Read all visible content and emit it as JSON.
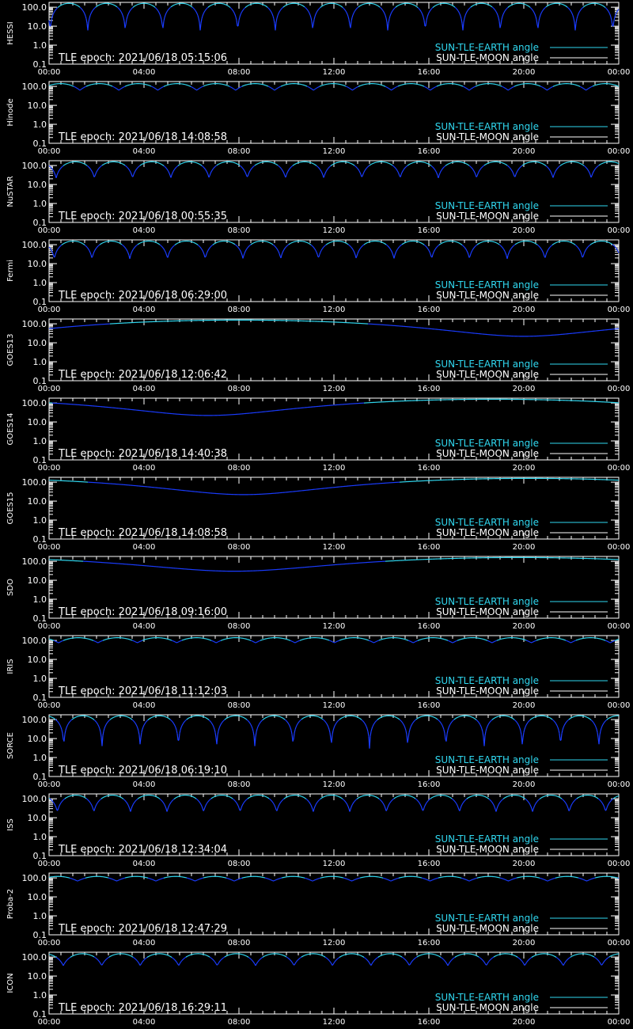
{
  "chart_data": {
    "type": "line",
    "x_tick_labels": [
      "00:00",
      "04:00",
      "08:00",
      "12:00",
      "16:00",
      "20:00",
      "00:00"
    ],
    "y_tick_labels": [
      "100.0",
      "10.0",
      "1.0",
      "0.1"
    ],
    "y_scale": "log",
    "ylim": [
      0.1,
      180
    ],
    "x_range_hours": [
      0,
      24
    ],
    "grid": false,
    "legend_placement": "bottom-right",
    "legend": [
      "SUN-TLE-EARTH angle",
      "SUN-TLE-MOON angle"
    ],
    "colors": {
      "background": "#000000",
      "axes": "#ffffff",
      "earth_visible": "#30d8f0",
      "earth_occulted": "#1a3cff",
      "moon": "#ffffff"
    },
    "panels": [
      {
        "satellite": "HESSI",
        "epoch_label": "TLE epoch: 2021/06/18 05:15:06",
        "profile": "leo",
        "period_hours": 1.58,
        "phase_hours": 0.05,
        "min_angle": 5,
        "max_angle": 160
      },
      {
        "satellite": "Hinode",
        "epoch_label": "TLE epoch: 2021/06/18 14:08:58",
        "profile": "leo",
        "period_hours": 1.64,
        "phase_hours": 1.3,
        "min_angle": 62,
        "max_angle": 140
      },
      {
        "satellite": "NuSTAR",
        "epoch_label": "TLE epoch: 2021/06/18 00:55:35",
        "profile": "leo",
        "period_hours": 1.61,
        "phase_hours": 0.3,
        "min_angle": 22,
        "max_angle": 158
      },
      {
        "satellite": "Fermi",
        "epoch_label": "TLE epoch: 2021/06/18 06:29:00",
        "profile": "leo",
        "period_hours": 1.59,
        "phase_hours": 0.22,
        "min_angle": 18,
        "max_angle": 155
      },
      {
        "satellite": "GOES13",
        "epoch_label": "TLE epoch: 2021/06/18 12:06:42",
        "profile": "geo",
        "min_time_hours": 20.0,
        "min_angle": 22,
        "max_angle": 158
      },
      {
        "satellite": "GOES14",
        "epoch_label": "TLE epoch: 2021/06/18 14:40:38",
        "profile": "geo",
        "min_time_hours": 6.7,
        "min_angle": 22,
        "max_angle": 158
      },
      {
        "satellite": "GOES15",
        "epoch_label": "TLE epoch: 2021/06/18 14:08:58",
        "profile": "geo",
        "min_time_hours": 8.2,
        "min_angle": 22,
        "max_angle": 158
      },
      {
        "satellite": "SDO",
        "epoch_label": "TLE epoch: 2021/06/18 09:16:00",
        "profile": "geo",
        "min_time_hours": 7.8,
        "min_angle": 30,
        "max_angle": 158
      },
      {
        "satellite": "IRIS",
        "epoch_label": "TLE epoch: 2021/06/18 11:12:03",
        "profile": "leo",
        "period_hours": 1.66,
        "phase_hours": 0.4,
        "min_angle": 75,
        "max_angle": 140
      },
      {
        "satellite": "SORCE",
        "epoch_label": "TLE epoch: 2021/06/18 06:19:10",
        "profile": "leo",
        "period_hours": 1.61,
        "phase_hours": 0.62,
        "min_angle": 3,
        "max_angle": 160
      },
      {
        "satellite": "ISS",
        "epoch_label": "TLE epoch: 2021/06/18 12:34:04",
        "profile": "leo",
        "period_hours": 1.54,
        "phase_hours": 0.35,
        "min_angle": 20,
        "max_angle": 155
      },
      {
        "satellite": "Proba-2",
        "epoch_label": "TLE epoch: 2021/06/18 12:47:29",
        "profile": "leo",
        "period_hours": 1.65,
        "phase_hours": 1.2,
        "min_angle": 68,
        "max_angle": 120
      },
      {
        "satellite": "ICON",
        "epoch_label": "TLE epoch: 2021/06/18 16:29:11",
        "profile": "leo",
        "period_hours": 1.62,
        "phase_hours": 0.6,
        "min_angle": 35,
        "max_angle": 150
      }
    ]
  }
}
